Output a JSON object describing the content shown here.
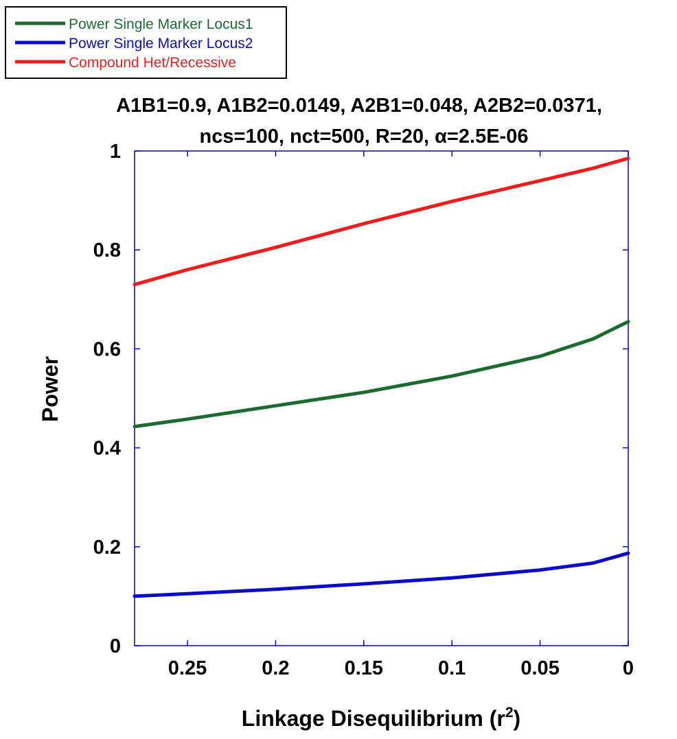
{
  "chart_data": {
    "type": "line",
    "title_lines": [
      "A1B1=0.9, A1B2=0.0149, A2B1=0.048, A2B2=0.0371,",
      "ncs=100, nct=500, R=20, α=2.5E-06"
    ],
    "xlabel": "Linkage Disequilibrium (r",
    "xlabel_sup": "2",
    "xlabel_end": ")",
    "ylabel": "Power",
    "xlim": [
      0.28,
      0
    ],
    "ylim": [
      0,
      1
    ],
    "x_reversed": true,
    "x_ticks": [
      0.25,
      0.2,
      0.15,
      0.1,
      0.05,
      0
    ],
    "x_tick_labels": [
      "0.25",
      "0.2",
      "0.15",
      "0.1",
      "0.05",
      "0"
    ],
    "y_ticks": [
      0,
      0.2,
      0.4,
      0.6,
      0.8,
      1
    ],
    "y_tick_labels": [
      "0",
      "0.2",
      "0.4",
      "0.6",
      "0.8",
      "1"
    ],
    "legend_position": "top-left, outside plot",
    "grid": false,
    "series": [
      {
        "name": "Power Single Marker Locus1",
        "color": "#1a6b2e",
        "x": [
          0.28,
          0.25,
          0.2,
          0.15,
          0.1,
          0.05,
          0.02,
          0
        ],
        "y": [
          0.443,
          0.458,
          0.485,
          0.512,
          0.545,
          0.585,
          0.62,
          0.655
        ]
      },
      {
        "name": "Power Single Marker Locus2",
        "color": "#0a0ac8",
        "x": [
          0.28,
          0.25,
          0.2,
          0.15,
          0.1,
          0.05,
          0.02,
          0
        ],
        "y": [
          0.1,
          0.105,
          0.114,
          0.125,
          0.137,
          0.153,
          0.167,
          0.187
        ]
      },
      {
        "name": "Compound Het/Recessive",
        "color": "#ee1c1c",
        "x": [
          0.28,
          0.25,
          0.2,
          0.15,
          0.1,
          0.05,
          0.02,
          0
        ],
        "y": [
          0.73,
          0.76,
          0.805,
          0.853,
          0.898,
          0.94,
          0.965,
          0.985
        ]
      }
    ]
  }
}
